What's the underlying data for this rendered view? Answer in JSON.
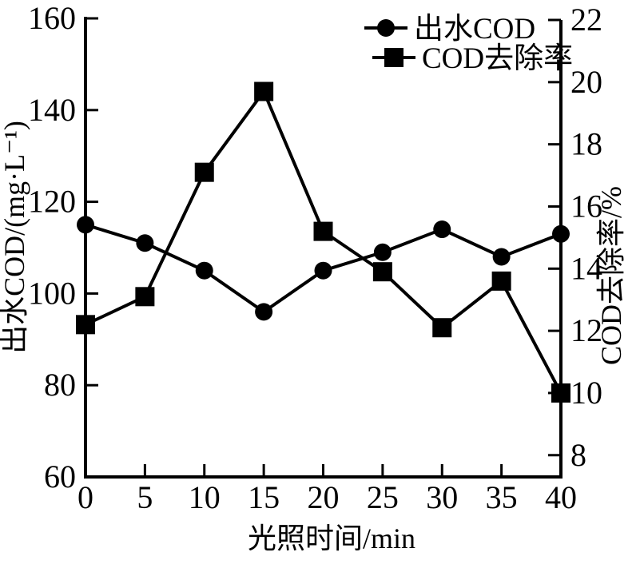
{
  "chart_data": {
    "type": "line",
    "title": "",
    "x_label": "光照时间/min",
    "y_left_label": "出水COD/(mg·L⁻¹)",
    "y_right_label": "COD去除率/%",
    "x_range": [
      0,
      40
    ],
    "x_ticks": [
      0,
      5,
      10,
      15,
      20,
      25,
      30,
      35,
      40
    ],
    "y_left_range": [
      60,
      160
    ],
    "y_left_ticks": [
      60,
      80,
      100,
      120,
      140,
      160
    ],
    "y_right_range": [
      7.3,
      22
    ],
    "y_right_ticks": [
      8,
      10,
      12,
      14,
      16,
      18,
      20,
      22
    ],
    "grid": false,
    "legend_position": "top-right-inside",
    "series": [
      {
        "name": "出水COD",
        "axis": "left",
        "marker": "circle",
        "x": [
          0,
          5,
          10,
          15,
          20,
          25,
          30,
          35,
          40
        ],
        "values": [
          115,
          111,
          105,
          96,
          105,
          109,
          114,
          108,
          113
        ]
      },
      {
        "name": "COD去除率",
        "axis": "right",
        "marker": "square",
        "x": [
          0,
          5,
          10,
          15,
          20,
          25,
          30,
          35,
          40
        ],
        "values": [
          12.2,
          13.1,
          17.1,
          19.7,
          15.2,
          13.9,
          12.1,
          13.6,
          10.0
        ]
      }
    ],
    "colors": {
      "line": "#000000",
      "marker": "#000000",
      "background": "#ffffff",
      "text": "#000000"
    }
  }
}
